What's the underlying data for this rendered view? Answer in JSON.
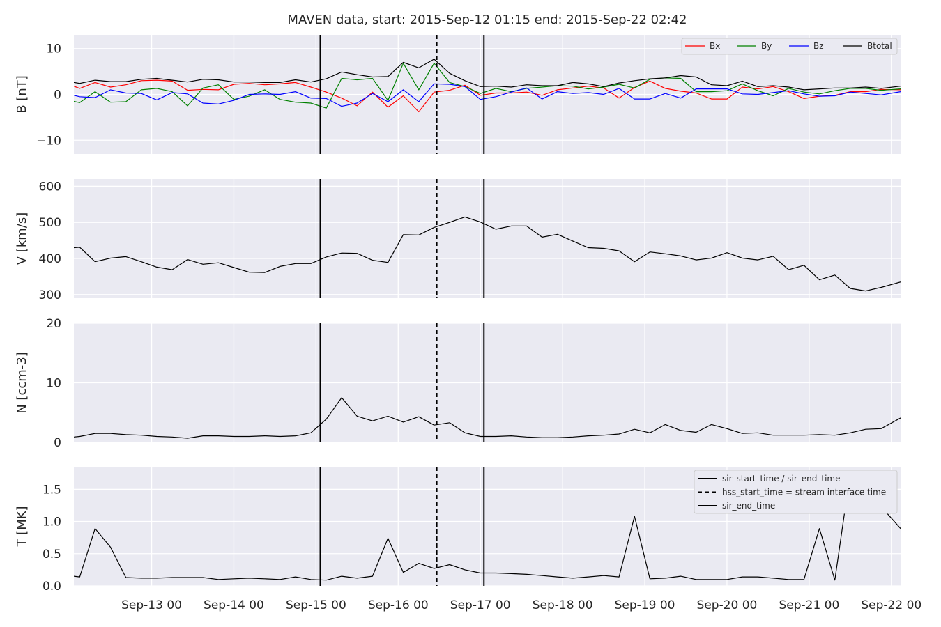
{
  "title": "MAVEN data, start: 2015-Sep-12 01:15  end: 2015-Sep-22 02:42",
  "chart_data": [
    {
      "type": "line",
      "panel": "B",
      "ylabel": "B [nT]",
      "ylim": [
        -13,
        13
      ],
      "yticks": [
        -10,
        0,
        10
      ],
      "yticklabels": [
        "−10",
        "0",
        "10"
      ],
      "xlim": [
        0.054,
        10.112
      ],
      "xticks": [
        1,
        2,
        3,
        4,
        5,
        6,
        7,
        8,
        9,
        10
      ],
      "xticklabels": [
        "Sep-13 00",
        "Sep-14 00",
        "Sep-15 00",
        "Sep-16 00",
        "Sep-17 00",
        "Sep-18 00",
        "Sep-19 00",
        "Sep-20 00",
        "Sep-21 00",
        "Sep-22 00"
      ],
      "x": [
        0.054,
        0.125,
        0.312,
        0.5,
        0.687,
        0.875,
        1.062,
        1.25,
        1.437,
        1.625,
        1.812,
        2.0,
        2.187,
        2.375,
        2.562,
        2.75,
        2.937,
        3.125,
        3.312,
        3.5,
        3.687,
        3.875,
        4.062,
        4.25,
        4.437,
        4.625,
        4.812,
        5.0,
        5.187,
        5.375,
        5.562,
        5.75,
        5.937,
        6.125,
        6.312,
        6.5,
        6.687,
        6.875,
        7.062,
        7.25,
        7.437,
        7.625,
        7.812,
        8.0,
        8.187,
        8.375,
        8.562,
        8.75,
        8.937,
        9.125,
        9.312,
        9.5,
        9.687,
        9.875,
        10.112
      ],
      "series": [
        {
          "name": "Bx",
          "color": "#ff0000",
          "values": [
            1.8,
            1.3,
            2.6,
            1.6,
            2.1,
            3.0,
            3.1,
            2.9,
            0.9,
            1.1,
            1.0,
            2.2,
            2.4,
            2.1,
            2.3,
            2.6,
            1.6,
            0.5,
            -0.8,
            -2.5,
            0.5,
            -2.8,
            -0.3,
            -3.8,
            0.5,
            0.9,
            2.0,
            -0.2,
            0.3,
            0.3,
            0.5,
            -0.2,
            1.0,
            1.4,
            1.8,
            1.4,
            -0.8,
            1.5,
            2.9,
            1.3,
            0.7,
            0.3,
            -1.0,
            -1.0,
            1.6,
            1.2,
            1.7,
            0.6,
            -0.9,
            -0.4,
            -0.2,
            0.6,
            0.6,
            1.1,
            1.0
          ]
        },
        {
          "name": "By",
          "color": "#008000",
          "values": [
            -1.5,
            -1.8,
            0.6,
            -1.7,
            -1.6,
            1.0,
            1.3,
            0.6,
            -2.5,
            1.4,
            2.1,
            -1.1,
            -0.4,
            1.0,
            -1.1,
            -1.7,
            -1.9,
            -3.0,
            3.5,
            3.2,
            3.5,
            -1.3,
            6.8,
            1.0,
            6.8,
            2.6,
            1.7,
            0.2,
            1.3,
            0.6,
            1.3,
            1.6,
            1.9,
            1.8,
            1.2,
            1.6,
            2.2,
            1.4,
            3.3,
            3.6,
            3.5,
            0.6,
            0.6,
            0.8,
            2.3,
            0.8,
            -0.3,
            1.3,
            0.5,
            0.1,
            0.8,
            1.3,
            1.3,
            0.9,
            1.2
          ]
        },
        {
          "name": "Bz",
          "color": "#0000ff",
          "values": [
            -0.2,
            -0.5,
            -0.7,
            1.0,
            0.3,
            0.2,
            -1.2,
            0.4,
            0.1,
            -1.9,
            -2.1,
            -1.3,
            0.0,
            0.1,
            0.0,
            0.6,
            -0.8,
            -0.9,
            -2.6,
            -1.9,
            0.2,
            -1.6,
            1.0,
            -1.6,
            2.3,
            2.2,
            1.7,
            -1.1,
            -0.5,
            0.5,
            1.4,
            -1.0,
            0.6,
            0.2,
            0.4,
            0.0,
            1.3,
            -1.0,
            -1.0,
            0.2,
            -0.8,
            1.2,
            1.2,
            1.2,
            0.1,
            0.0,
            0.4,
            0.8,
            0.1,
            -0.4,
            -0.3,
            0.5,
            0.2,
            -0.1,
            0.6
          ]
        },
        {
          "name": "Btotal",
          "color": "#000000",
          "values": [
            2.6,
            2.4,
            3.1,
            2.8,
            2.8,
            3.3,
            3.5,
            3.1,
            2.7,
            3.3,
            3.2,
            2.7,
            2.7,
            2.6,
            2.6,
            3.2,
            2.7,
            3.4,
            4.9,
            4.3,
            3.8,
            3.9,
            7.0,
            5.8,
            7.7,
            4.6,
            3.0,
            1.7,
            1.8,
            1.6,
            2.1,
            1.9,
            1.9,
            2.6,
            2.3,
            1.7,
            2.5,
            3.0,
            3.4,
            3.6,
            4.1,
            3.8,
            2.1,
            1.9,
            2.9,
            1.7,
            1.9,
            1.6,
            1.0,
            1.2,
            1.4,
            1.4,
            1.6,
            1.3,
            1.8
          ]
        }
      ],
      "legend": {
        "location": "top-right",
        "entries": [
          "Bx",
          "By",
          "Bz",
          "Btotal"
        ]
      }
    },
    {
      "type": "line",
      "panel": "V",
      "ylabel": "V [km/s]",
      "ylim": [
        290,
        620
      ],
      "yticks": [
        300,
        400,
        500,
        600
      ],
      "yticklabels": [
        "300",
        "400",
        "500",
        "600"
      ],
      "xlim": [
        0.054,
        10.112
      ],
      "xticks": [
        1,
        2,
        3,
        4,
        5,
        6,
        7,
        8,
        9,
        10
      ],
      "x": [
        0.054,
        0.125,
        0.312,
        0.5,
        0.687,
        0.875,
        1.062,
        1.25,
        1.437,
        1.625,
        1.812,
        2.0,
        2.187,
        2.375,
        2.562,
        2.75,
        2.937,
        3.125,
        3.312,
        3.5,
        3.687,
        3.875,
        4.062,
        4.25,
        4.437,
        4.625,
        4.812,
        5.0,
        5.187,
        5.375,
        5.562,
        5.75,
        5.937,
        6.125,
        6.312,
        6.5,
        6.687,
        6.875,
        7.062,
        7.25,
        7.437,
        7.625,
        7.812,
        8.0,
        8.187,
        8.375,
        8.562,
        8.75,
        8.937,
        9.125,
        9.312,
        9.5,
        9.687,
        9.875,
        10.112
      ],
      "series": [
        {
          "name": "",
          "color": "#000000",
          "values": [
            430,
            431,
            391,
            401,
            405,
            391,
            376,
            369,
            397,
            384,
            388,
            375,
            362,
            361,
            378,
            386,
            386,
            404,
            415,
            414,
            395,
            389,
            466,
            465,
            486,
            500,
            515,
            501,
            481,
            490,
            490,
            459,
            467,
            448,
            430,
            428,
            421,
            391,
            418,
            413,
            407,
            396,
            401,
            416,
            401,
            396,
            406,
            369,
            381,
            341,
            354,
            317,
            310,
            320,
            335
          ]
        }
      ]
    },
    {
      "type": "line",
      "panel": "N",
      "ylabel": "N [ccm-3]",
      "ylim": [
        0,
        20
      ],
      "yticks": [
        0,
        10,
        20
      ],
      "yticklabels": [
        "0",
        "10",
        "20"
      ],
      "xlim": [
        0.054,
        10.112
      ],
      "xticks": [
        1,
        2,
        3,
        4,
        5,
        6,
        7,
        8,
        9,
        10
      ],
      "x": [
        0.054,
        0.125,
        0.312,
        0.5,
        0.687,
        0.875,
        1.062,
        1.25,
        1.437,
        1.625,
        1.812,
        2.0,
        2.187,
        2.375,
        2.562,
        2.75,
        2.937,
        3.125,
        3.312,
        3.5,
        3.687,
        3.875,
        4.062,
        4.25,
        4.437,
        4.625,
        4.812,
        5.0,
        5.187,
        5.375,
        5.562,
        5.75,
        5.937,
        6.125,
        6.312,
        6.5,
        6.687,
        6.875,
        7.062,
        7.25,
        7.437,
        7.625,
        7.812,
        8.0,
        8.187,
        8.375,
        8.562,
        8.75,
        8.937,
        9.125,
        9.312,
        9.5,
        9.687,
        9.875,
        10.112
      ],
      "series": [
        {
          "name": "",
          "color": "#000000",
          "values": [
            0.9,
            1.0,
            1.5,
            1.5,
            1.3,
            1.2,
            1.0,
            0.9,
            0.7,
            1.1,
            1.1,
            1.0,
            1.0,
            1.1,
            1.0,
            1.1,
            1.6,
            3.9,
            7.5,
            4.4,
            3.6,
            4.4,
            3.4,
            4.3,
            2.9,
            3.3,
            1.6,
            1.0,
            1.0,
            1.1,
            0.9,
            0.8,
            0.8,
            0.9,
            1.1,
            1.2,
            1.4,
            2.2,
            1.6,
            3.0,
            2.0,
            1.7,
            3.0,
            2.3,
            1.5,
            1.6,
            1.2,
            1.2,
            1.2,
            1.3,
            1.2,
            1.6,
            2.2,
            2.3,
            4.1
          ]
        }
      ]
    },
    {
      "type": "line",
      "panel": "T",
      "ylabel": "T [MK]",
      "ylim": [
        0,
        1.85
      ],
      "yticks": [
        0,
        0.5,
        1.0,
        1.5
      ],
      "yticklabels": [
        "0.0",
        "0.5",
        "1.0",
        "1.5"
      ],
      "xlim": [
        0.054,
        10.112
      ],
      "xticks": [
        1,
        2,
        3,
        4,
        5,
        6,
        7,
        8,
        9,
        10
      ],
      "x": [
        0.054,
        0.125,
        0.312,
        0.5,
        0.687,
        0.875,
        1.062,
        1.25,
        1.437,
        1.625,
        1.812,
        2.0,
        2.187,
        2.375,
        2.562,
        2.75,
        2.937,
        3.125,
        3.312,
        3.5,
        3.687,
        3.875,
        4.062,
        4.25,
        4.437,
        4.625,
        4.812,
        5.0,
        5.187,
        5.375,
        5.562,
        5.75,
        5.937,
        6.125,
        6.312,
        6.5,
        6.687,
        6.875,
        7.062,
        7.25,
        7.437,
        7.625,
        7.812,
        8.0,
        8.187,
        8.375,
        8.562,
        8.75,
        8.937,
        9.125,
        9.312,
        9.5,
        9.687,
        9.875,
        10.112
      ],
      "series": [
        {
          "name": "",
          "color": "#000000",
          "values": [
            0.15,
            0.14,
            0.89,
            0.6,
            0.13,
            0.12,
            0.12,
            0.13,
            0.13,
            0.13,
            0.1,
            0.11,
            0.12,
            0.11,
            0.1,
            0.14,
            0.1,
            0.09,
            0.15,
            0.12,
            0.15,
            0.74,
            0.21,
            0.35,
            0.27,
            0.33,
            0.25,
            0.2,
            0.2,
            0.19,
            0.18,
            0.16,
            0.14,
            0.12,
            0.14,
            0.16,
            0.14,
            1.08,
            0.11,
            0.12,
            0.15,
            0.1,
            0.1,
            0.1,
            0.14,
            0.14,
            0.12,
            0.1,
            0.1,
            0.89,
            0.09,
            1.75,
            1.6,
            1.23,
            0.89
          ]
        }
      ],
      "legend": {
        "location": "top-right",
        "entries": [
          "sir_start_time / sir_end_time",
          "hss_start_time = stream interface time",
          "sir_end_time"
        ]
      }
    }
  ],
  "event_lines": [
    {
      "x": 3.052,
      "style": "solid",
      "label": "sir_start_time / sir_end_time"
    },
    {
      "x": 4.469,
      "style": "dashed",
      "label": "hss_start_time = stream interface time"
    },
    {
      "x": 5.043,
      "style": "solid",
      "label": "sir_end_time"
    }
  ],
  "colors": {
    "axes_bg": "#eaeaf2",
    "grid": "#ffffff",
    "text": "#262626"
  }
}
